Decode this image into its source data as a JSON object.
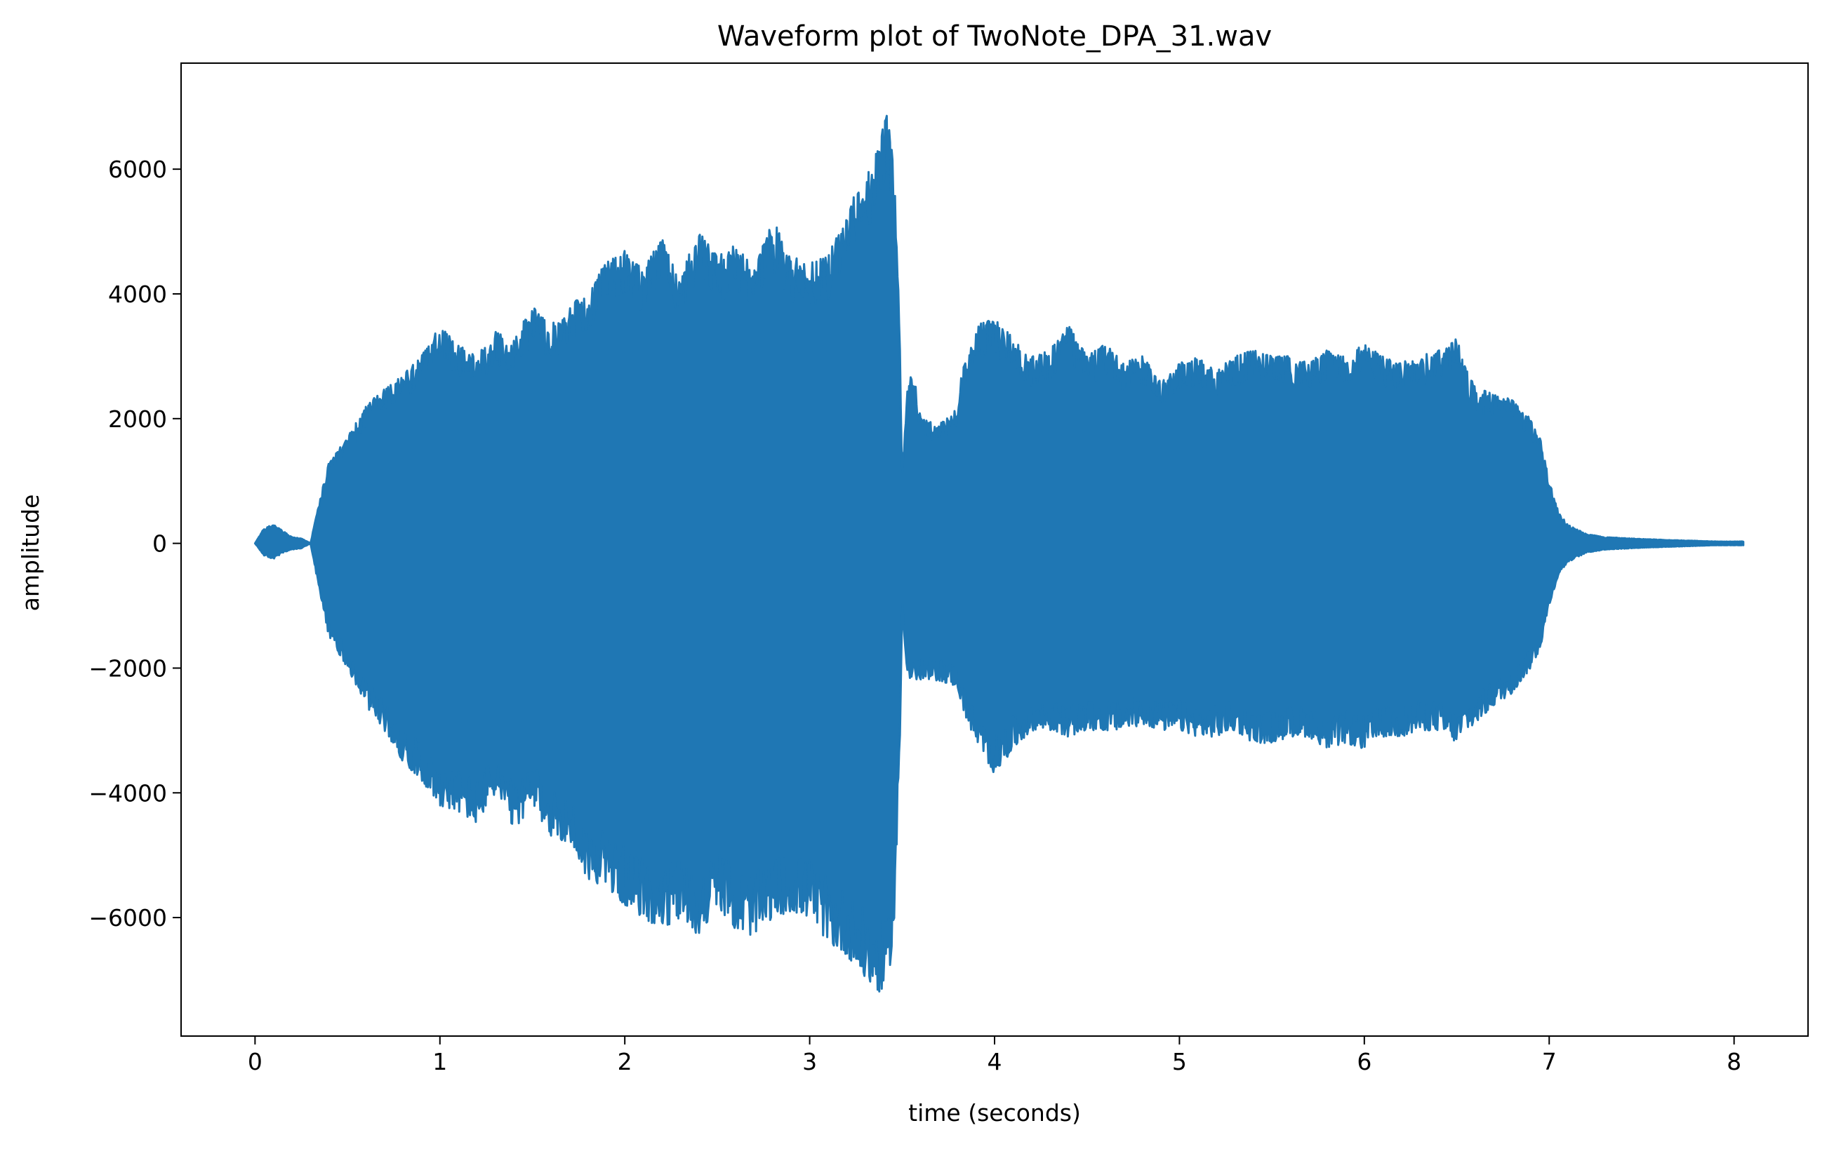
{
  "chart_data": {
    "type": "line",
    "title": "Waveform plot of TwoNote_DPA_31.wav",
    "xlabel": "time (seconds)",
    "ylabel": "amplitude",
    "xlim": [
      -0.4,
      8.4
    ],
    "ylim": [
      -7900,
      7700
    ],
    "xticks": [
      0,
      1,
      2,
      3,
      4,
      5,
      6,
      7,
      8
    ],
    "xtick_labels": [
      "0",
      "1",
      "2",
      "3",
      "4",
      "5",
      "6",
      "7",
      "8"
    ],
    "yticks": [
      -6000,
      -4000,
      -2000,
      0,
      2000,
      4000,
      6000
    ],
    "ytick_labels": [
      "−6000",
      "−4000",
      "−2000",
      "0",
      "2000",
      "4000",
      "6000"
    ],
    "grid": false,
    "legend": "none",
    "series": [
      {
        "color": "#1f77b4",
        "upper_envelope": {
          "x": [
            0.0,
            0.05,
            0.1,
            0.15,
            0.2,
            0.25,
            0.3,
            0.35,
            0.4,
            0.5,
            0.6,
            0.7,
            0.8,
            0.9,
            1.0,
            1.1,
            1.2,
            1.3,
            1.4,
            1.5,
            1.6,
            1.7,
            1.8,
            1.9,
            2.0,
            2.1,
            2.2,
            2.3,
            2.4,
            2.5,
            2.6,
            2.7,
            2.8,
            2.9,
            3.0,
            3.1,
            3.2,
            3.3,
            3.38,
            3.42,
            3.46,
            3.49,
            3.5,
            3.53,
            3.56,
            3.6,
            3.7,
            3.8,
            3.82,
            3.9,
            4.0,
            4.1,
            4.2,
            4.3,
            4.4,
            4.5,
            4.6,
            4.7,
            4.8,
            4.9,
            5.0,
            5.1,
            5.2,
            5.3,
            5.4,
            5.5,
            5.6,
            5.7,
            5.8,
            5.9,
            6.0,
            6.1,
            6.2,
            6.3,
            6.4,
            6.5,
            6.55,
            6.6,
            6.7,
            6.8,
            6.9,
            6.95,
            7.0,
            7.05,
            7.1,
            7.2,
            7.3,
            7.5,
            7.7,
            7.9,
            8.05
          ],
          "y": [
            0,
            250,
            300,
            200,
            100,
            80,
            0,
            700,
            1300,
            1700,
            2200,
            2500,
            2700,
            3000,
            3500,
            3200,
            3000,
            3400,
            3300,
            3800,
            3500,
            3800,
            4100,
            4500,
            4700,
            4400,
            4900,
            4300,
            5000,
            4600,
            4800,
            4400,
            5200,
            4600,
            4500,
            4600,
            5400,
            5800,
            6500,
            6900,
            6000,
            3000,
            1200,
            2500,
            2800,
            2000,
            1900,
            2200,
            2700,
            3500,
            3600,
            3300,
            3000,
            3100,
            3500,
            3000,
            3200,
            2900,
            3000,
            2600,
            2900,
            3000,
            2800,
            3000,
            3100,
            3000,
            3000,
            2900,
            3100,
            3000,
            3200,
            3000,
            2900,
            3000,
            3100,
            3300,
            2800,
            2500,
            2400,
            2300,
            2000,
            1700,
            1000,
            500,
            300,
            150,
            100,
            70,
            50,
            30,
            30
          ]
        },
        "lower_envelope": {
          "x": [
            0.0,
            0.05,
            0.1,
            0.15,
            0.2,
            0.25,
            0.3,
            0.35,
            0.4,
            0.5,
            0.6,
            0.7,
            0.8,
            0.9,
            1.0,
            1.1,
            1.2,
            1.3,
            1.4,
            1.5,
            1.6,
            1.7,
            1.8,
            1.9,
            2.0,
            2.1,
            2.2,
            2.3,
            2.4,
            2.5,
            2.6,
            2.7,
            2.8,
            2.9,
            3.0,
            3.1,
            3.2,
            3.3,
            3.38,
            3.42,
            3.46,
            3.49,
            3.5,
            3.53,
            3.56,
            3.6,
            3.7,
            3.8,
            3.82,
            3.9,
            4.0,
            4.1,
            4.2,
            4.3,
            4.4,
            4.5,
            4.6,
            4.7,
            4.8,
            4.9,
            5.0,
            5.1,
            5.2,
            5.3,
            5.4,
            5.5,
            5.6,
            5.7,
            5.8,
            5.9,
            6.0,
            6.1,
            6.2,
            6.3,
            6.4,
            6.5,
            6.55,
            6.6,
            6.7,
            6.8,
            6.9,
            6.95,
            7.0,
            7.05,
            7.1,
            7.2,
            7.3,
            7.5,
            7.7,
            7.9,
            8.05
          ],
          "y": [
            0,
            -200,
            -250,
            -150,
            -100,
            -80,
            0,
            -800,
            -1500,
            -2000,
            -2600,
            -3000,
            -3500,
            -3800,
            -4200,
            -4300,
            -4500,
            -4000,
            -4600,
            -4200,
            -4700,
            -4800,
            -5400,
            -5500,
            -5800,
            -6000,
            -6200,
            -6000,
            -6300,
            -5800,
            -6200,
            -6300,
            -6000,
            -5900,
            -6000,
            -6400,
            -6600,
            -7000,
            -7200,
            -7200,
            -6000,
            -3000,
            -1000,
            -2200,
            -2200,
            -2200,
            -2200,
            -2300,
            -2600,
            -3200,
            -3700,
            -3300,
            -3000,
            -3000,
            -3100,
            -3000,
            -3000,
            -3000,
            -2900,
            -3000,
            -3000,
            -3100,
            -3100,
            -3000,
            -3200,
            -3200,
            -3100,
            -3100,
            -3300,
            -3200,
            -3300,
            -3100,
            -3100,
            -3000,
            -3000,
            -3200,
            -3000,
            -2900,
            -2600,
            -2400,
            -2000,
            -1700,
            -1000,
            -500,
            -300,
            -150,
            -100,
            -70,
            -50,
            -30,
            -30
          ]
        }
      }
    ]
  }
}
